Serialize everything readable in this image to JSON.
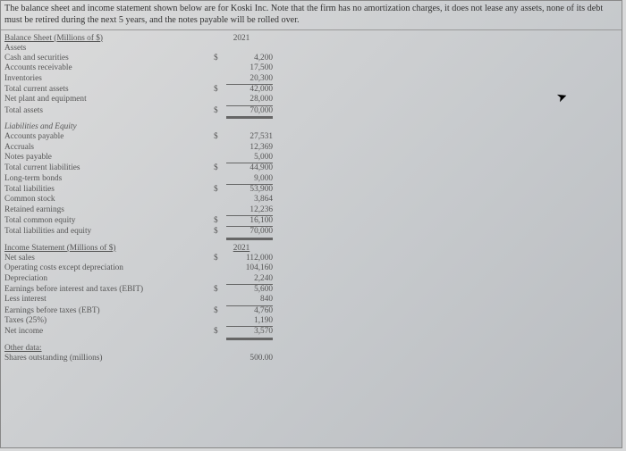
{
  "intro": "The balance sheet and income statement shown below are for Koski Inc. Note that the firm has no amortization charges, it does not lease any assets, none of its debt must be retired during the next 5 years, and the notes payable will be rolled over.",
  "bs": {
    "title": "Balance Sheet (Millions of $)",
    "year": "2021",
    "assets_hdr": "Assets",
    "rows_assets": [
      {
        "label": "Cash and securities",
        "cur": "$",
        "val": "4,200"
      },
      {
        "label": "Accounts receivable",
        "cur": "",
        "val": "17,500"
      },
      {
        "label": "Inventories",
        "cur": "",
        "val": "20,300",
        "underline": "single"
      }
    ],
    "tca": {
      "label": "Total current assets",
      "cur": "$",
      "val": "42,000"
    },
    "npe": {
      "label": "Net plant and equipment",
      "cur": "",
      "val": "28,000",
      "underline": "single"
    },
    "ta": {
      "label": "Total assets",
      "cur": "$",
      "val": "70,000",
      "underline": "double"
    },
    "le_hdr": "Liabilities and Equity",
    "rows_liab": [
      {
        "label": "Accounts payable",
        "cur": "$",
        "val": "27,531"
      },
      {
        "label": "Accruals",
        "cur": "",
        "val": "12,369"
      },
      {
        "label": "Notes payable",
        "cur": "",
        "val": "5,000",
        "underline": "single"
      }
    ],
    "tcl": {
      "label": "Total current liabilities",
      "cur": "$",
      "val": "44,900"
    },
    "ltb": {
      "label": "Long-term bonds",
      "cur": "",
      "val": "9,000",
      "underline": "single"
    },
    "tl": {
      "label": "Total liabilities",
      "cur": "$",
      "val": "53,900"
    },
    "cs": {
      "label": "Common stock",
      "cur": "",
      "val": "3,864"
    },
    "re": {
      "label": "Retained earnings",
      "cur": "",
      "val": "12,236",
      "underline": "single"
    },
    "tce": {
      "label": "Total common equity",
      "cur": "$",
      "val": "16,100",
      "underline": "single"
    },
    "tle": {
      "label": "Total liabilities and equity",
      "cur": "$",
      "val": "70,000",
      "underline": "double"
    }
  },
  "is": {
    "title": "Income Statement (Millions of $)",
    "year": "2021",
    "rows": [
      {
        "label": "Net sales",
        "cur": "$",
        "val": "112,000"
      },
      {
        "label": "Operating costs except depreciation",
        "cur": "",
        "val": "104,160"
      },
      {
        "label": "Depreciation",
        "cur": "",
        "val": "2,240",
        "underline": "single"
      },
      {
        "label": "Earnings before interest and taxes (EBIT)",
        "cur": "$",
        "val": "5,600"
      },
      {
        "label": "Less interest",
        "cur": "",
        "val": "840",
        "underline": "single"
      },
      {
        "label": "Earnings before taxes (EBT)",
        "cur": "$",
        "val": "4,760"
      },
      {
        "label": "Taxes (25%)",
        "cur": "",
        "val": "1,190",
        "underline": "single"
      },
      {
        "label": "Net income",
        "cur": "$",
        "val": "3,570",
        "underline": "double"
      }
    ]
  },
  "other": {
    "hdr": "Other data:",
    "rows": [
      {
        "label": "Shares outstanding (millions)",
        "val": "500.00"
      }
    ]
  }
}
